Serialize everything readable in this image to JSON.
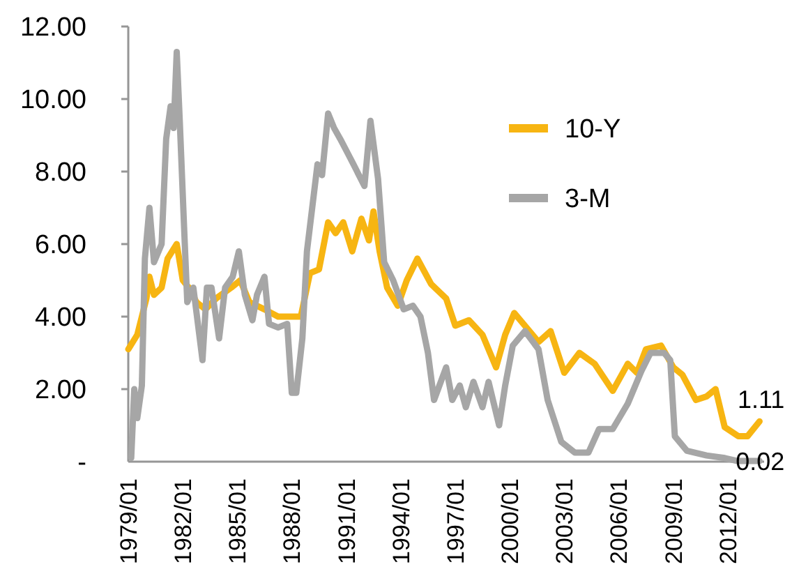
{
  "chart_data": {
    "type": "line",
    "xlim": [
      "1979-01",
      "2014-01"
    ],
    "xticks": [
      {
        "value": "1979-01",
        "label": "1979/01"
      },
      {
        "value": "1982-01",
        "label": "1982/01"
      },
      {
        "value": "1985-01",
        "label": "1985/01"
      },
      {
        "value": "1988-01",
        "label": "1988/01"
      },
      {
        "value": "1991-01",
        "label": "1991/01"
      },
      {
        "value": "1994-01",
        "label": "1994/01"
      },
      {
        "value": "1997-01",
        "label": "1997/01"
      },
      {
        "value": "2000-01",
        "label": "2000/01"
      },
      {
        "value": "2003-01",
        "label": "2003/01"
      },
      {
        "value": "2006-01",
        "label": "2006/01"
      },
      {
        "value": "2009-01",
        "label": "2009/01"
      },
      {
        "value": "2012-01",
        "label": "2012/01"
      }
    ],
    "ylim": [
      0,
      12
    ],
    "yticks": [
      {
        "value": 0,
        "label": "-"
      },
      {
        "value": 2,
        "label": "2.00"
      },
      {
        "value": 4,
        "label": "4.00"
      },
      {
        "value": 6,
        "label": "6.00"
      },
      {
        "value": 8,
        "label": "8.00"
      },
      {
        "value": 10,
        "label": "10.00"
      },
      {
        "value": 12,
        "label": "12.00"
      }
    ],
    "grid": false,
    "legend": "top right",
    "marker": "none",
    "line_style": "solid",
    "annotations": [
      {
        "text": "1.11",
        "x": "2013-10",
        "y": 1.11
      },
      {
        "text": "0.02",
        "x": "2013-10",
        "y": 0.02
      }
    ],
    "series": [
      {
        "name": "10-Y",
        "color": "#f7b512",
        "x": [
          "1979-01",
          "1979-07",
          "1980-01",
          "1980-03",
          "1980-06",
          "1980-11",
          "1981-03",
          "1981-09",
          "1982-01",
          "1982-05",
          "1982-10",
          "1983-04",
          "1983-11",
          "1984-09",
          "1985-03",
          "1985-09",
          "1986-07",
          "1987-04",
          "1988-01",
          "1988-07",
          "1989-01",
          "1989-07",
          "1990-01",
          "1990-06",
          "1990-11",
          "1991-05",
          "1991-11",
          "1992-04",
          "1992-07",
          "1992-11",
          "1993-04",
          "1993-11",
          "1994-05",
          "1994-12",
          "1995-09",
          "1996-07",
          "1997-01",
          "1997-10",
          "1998-07",
          "1999-04",
          "1999-10",
          "2000-04",
          "2001-02",
          "2001-08",
          "2002-04",
          "2003-01",
          "2003-11",
          "2004-09",
          "2005-09",
          "2006-07",
          "2007-01",
          "2007-07",
          "2008-05",
          "2009-01",
          "2009-07",
          "2010-04",
          "2010-11",
          "2011-05",
          "2011-11",
          "2012-08",
          "2013-02",
          "2013-10"
        ],
        "values": [
          3.1,
          3.5,
          4.5,
          5.1,
          4.6,
          4.8,
          5.6,
          6.0,
          5.0,
          4.8,
          4.4,
          4.2,
          4.5,
          4.8,
          5.0,
          4.4,
          4.2,
          4.0,
          4.0,
          4.0,
          5.2,
          5.3,
          6.6,
          6.3,
          6.6,
          5.8,
          6.7,
          6.1,
          6.9,
          5.8,
          4.8,
          4.3,
          5.0,
          5.6,
          4.9,
          4.5,
          3.75,
          3.9,
          3.5,
          2.6,
          3.5,
          4.1,
          3.6,
          3.3,
          3.6,
          2.45,
          3.0,
          2.7,
          1.95,
          2.7,
          2.45,
          3.1,
          3.2,
          2.6,
          2.4,
          1.7,
          1.8,
          2.0,
          0.95,
          0.7,
          0.7,
          1.11
        ]
      },
      {
        "name": "3-M",
        "color": "#a6a6a6",
        "x": [
          "1979-03",
          "1979-05",
          "1979-07",
          "1979-10",
          "1979-12",
          "1980-03",
          "1980-06",
          "1980-11",
          "1981-02",
          "1981-05",
          "1981-07",
          "1981-09",
          "1981-11",
          "1982-02",
          "1982-04",
          "1982-08",
          "1983-02",
          "1983-05",
          "1983-08",
          "1984-01",
          "1984-05",
          "1984-10",
          "1985-02",
          "1985-06",
          "1985-11",
          "1986-02",
          "1986-07",
          "1986-10",
          "1987-04",
          "1987-10",
          "1988-01",
          "1988-04",
          "1988-08",
          "1988-11",
          "1989-06",
          "1989-09",
          "1990-01",
          "1990-05",
          "1990-09",
          "1991-02",
          "1991-07",
          "1992-01",
          "1992-05",
          "1992-10",
          "1993-02",
          "1993-08",
          "1994-03",
          "1994-09",
          "1995-02",
          "1995-07",
          "1995-11",
          "1996-07",
          "1996-11",
          "1997-04",
          "1997-08",
          "1998-01",
          "1998-07",
          "1998-11",
          "1999-06",
          "1999-10",
          "2000-03",
          "2000-11",
          "2001-08",
          "2002-02",
          "2002-11",
          "2003-08",
          "2004-05",
          "2004-12",
          "2005-09",
          "2006-07",
          "2007-04",
          "2007-10",
          "2008-07",
          "2008-11",
          "2009-02",
          "2009-10",
          "2010-11",
          "2011-11",
          "2012-07",
          "2013-10"
        ],
        "values": [
          0.1,
          2.0,
          1.2,
          2.1,
          5.6,
          7.0,
          5.5,
          6.0,
          8.9,
          9.8,
          9.2,
          11.3,
          9.4,
          6.3,
          4.4,
          4.8,
          2.8,
          4.8,
          4.8,
          3.4,
          4.8,
          5.1,
          5.8,
          4.6,
          3.9,
          4.6,
          5.1,
          3.8,
          3.7,
          3.8,
          1.9,
          1.9,
          3.4,
          5.8,
          8.2,
          7.9,
          9.6,
          9.2,
          8.9,
          8.5,
          8.1,
          7.6,
          9.4,
          7.8,
          5.5,
          5.0,
          4.2,
          4.3,
          4.0,
          3.0,
          1.7,
          2.6,
          1.7,
          2.1,
          1.5,
          2.2,
          1.5,
          2.2,
          1.0,
          2.1,
          3.2,
          3.6,
          3.1,
          1.7,
          0.55,
          0.25,
          0.25,
          0.9,
          0.9,
          1.6,
          2.5,
          3.0,
          3.0,
          2.8,
          0.7,
          0.3,
          0.17,
          0.1,
          0.02,
          0.02
        ]
      }
    ]
  }
}
